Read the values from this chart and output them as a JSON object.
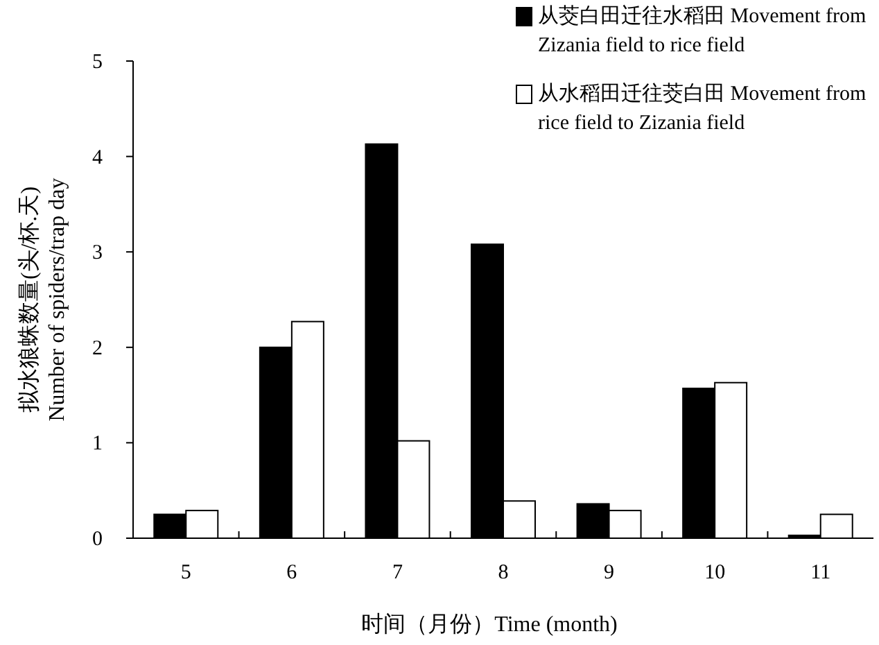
{
  "chart_data": {
    "type": "bar",
    "xlabel": "时间（月份）Time (month)",
    "ylabel": "拟水狼蛛数量(头/杯.天)\nNumber of spiders/trap day",
    "categories": [
      "5",
      "6",
      "7",
      "8",
      "9",
      "10",
      "11"
    ],
    "series": [
      {
        "name": "从茭白田迁往水稻田 Movement from Zizania field to rice field",
        "color": "#000000",
        "values": [
          0.25,
          2.0,
          4.13,
          3.08,
          0.36,
          1.57,
          0.03
        ]
      },
      {
        "name": "从水稻田迁往茭白田 Movement from rice field to Zizania field",
        "color": "#ffffff",
        "values": [
          0.29,
          2.27,
          1.02,
          0.39,
          0.29,
          1.63,
          0.25
        ]
      }
    ],
    "ylim": [
      0,
      5
    ],
    "yticks": [
      0,
      1,
      2,
      3,
      4,
      5
    ],
    "grid": false,
    "legend": "top right"
  }
}
